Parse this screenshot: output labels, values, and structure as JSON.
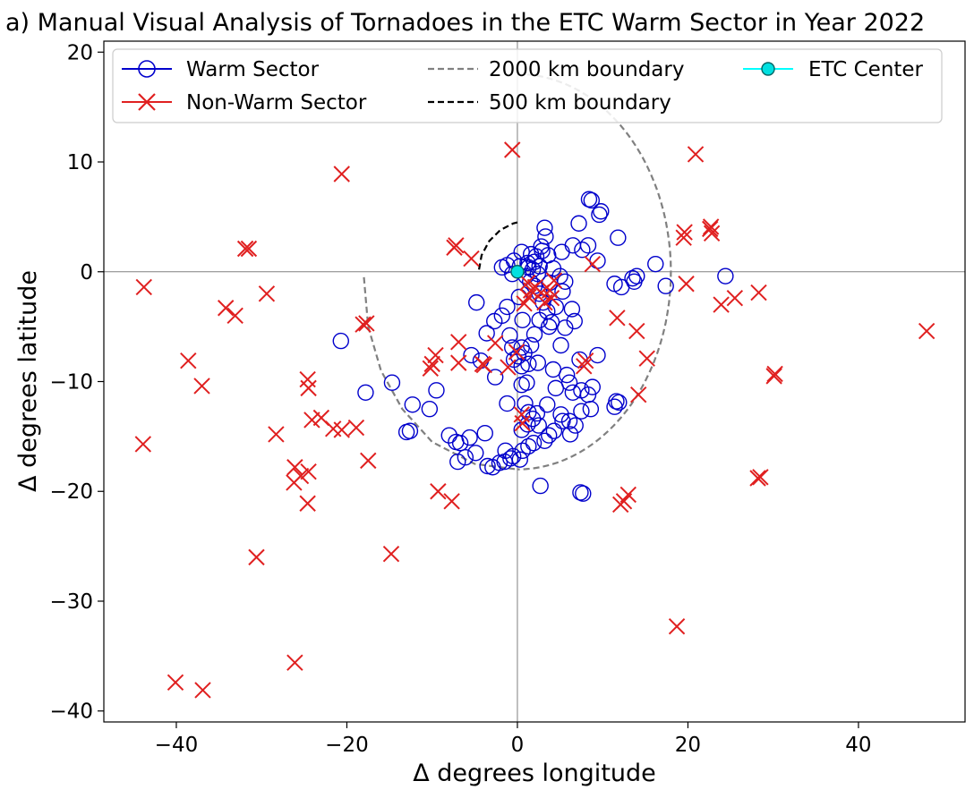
{
  "chart_data": {
    "type": "scatter",
    "title": "a)  Manual Visual Analysis of Tornadoes in the ETC Warm Sector in Year 2022",
    "xlabel": "Δ degrees longitude",
    "ylabel": "Δ degrees latitude",
    "xlim": [
      -48.5,
      52.5
    ],
    "ylim": [
      -41,
      21
    ],
    "xticks": [
      -40,
      -20,
      0,
      20,
      40
    ],
    "yticks": [
      -40,
      -30,
      -20,
      -10,
      0,
      10,
      20
    ],
    "xtick_labels": [
      "−40",
      "−20",
      "0",
      "20",
      "40"
    ],
    "ytick_labels": [
      "−40",
      "−30",
      "−20",
      "−10",
      "0",
      "10",
      "20"
    ],
    "legend_position": "top",
    "legend": [
      {
        "key": "warm",
        "label": "Warm Sector"
      },
      {
        "key": "nonwarm",
        "label": "Non-Warm Sector"
      },
      {
        "key": "b2000",
        "label": "2000 km boundary"
      },
      {
        "key": "b500",
        "label": "500 km boundary"
      },
      {
        "key": "center",
        "label": "ETC Center"
      }
    ],
    "colors": {
      "warm": "#0000cc",
      "nonwarm": "#e02020",
      "b2000": "#808080",
      "b500": "#000000",
      "center_fill": "#00e0e0",
      "center_line": "#00ffff",
      "zero_lines": "#808080"
    },
    "boundaries": {
      "b2000": {
        "center": [
          0,
          0
        ],
        "radius_x": 18,
        "radius_y": 18,
        "arc_from_deg": 270,
        "arc_to_deg": 450,
        "extra_arc": [
          [
            -18,
            -0.5
          ],
          [
            -17.5,
            -5
          ],
          [
            -16,
            -9
          ],
          [
            -13.5,
            -12.5
          ],
          [
            -10,
            -15.5
          ],
          [
            -5,
            -17.5
          ],
          [
            0,
            -18
          ]
        ]
      },
      "b500": [
        [
          -4.5,
          0.2
        ],
        [
          -4.2,
          1.5
        ],
        [
          -3.3,
          2.8
        ],
        [
          -2,
          3.8
        ],
        [
          -0.5,
          4.4
        ],
        [
          0,
          4.5
        ]
      ]
    },
    "series": [
      {
        "name": "Warm Sector",
        "marker": "circle",
        "points": [
          [
            0.5,
            1.8
          ],
          [
            1.2,
            0.8
          ],
          [
            1.8,
            0.2
          ],
          [
            2.2,
            1.4
          ],
          [
            2.6,
            0.5
          ],
          [
            1.0,
            -0.4
          ],
          [
            1.5,
            -0.9
          ],
          [
            2.0,
            0.9
          ],
          [
            1.6,
            1.6
          ],
          [
            2.4,
            -0.2
          ],
          [
            1.3,
            0.4
          ],
          [
            2.9,
            1.9
          ],
          [
            3.2,
            4.0
          ],
          [
            3.3,
            3.2
          ],
          [
            2.8,
            2.3
          ],
          [
            3.6,
            1.5
          ],
          [
            4.2,
            0.3
          ],
          [
            3.8,
            -1.0
          ],
          [
            5.0,
            -0.4
          ],
          [
            5.6,
            -0.9
          ],
          [
            5.2,
            1.8
          ],
          [
            6.5,
            2.4
          ],
          [
            7.2,
            4.4
          ],
          [
            8.4,
            6.6
          ],
          [
            8.7,
            6.5
          ],
          [
            9.6,
            5.2
          ],
          [
            9.8,
            5.5
          ],
          [
            7.6,
            2.0
          ],
          [
            8.3,
            2.4
          ],
          [
            9.4,
            1.0
          ],
          [
            11.8,
            3.1
          ],
          [
            11.4,
            -1.1
          ],
          [
            12.2,
            -1.4
          ],
          [
            13.5,
            -0.6
          ],
          [
            14.0,
            -0.4
          ],
          [
            13.7,
            -0.9
          ],
          [
            16.2,
            0.7
          ],
          [
            17.4,
            -1.3
          ],
          [
            24.4,
            -0.4
          ],
          [
            -1.8,
            0.4
          ],
          [
            -1.2,
            0.6
          ],
          [
            -0.6,
            -0.2
          ],
          [
            0.3,
            0.5
          ],
          [
            -0.4,
            1.0
          ],
          [
            2.0,
            -1.3
          ],
          [
            2.6,
            -2.0
          ],
          [
            3.0,
            -2.8
          ],
          [
            3.5,
            -3.6
          ],
          [
            4.5,
            -3.2
          ],
          [
            5.3,
            -1.8
          ],
          [
            6.4,
            -3.4
          ],
          [
            6.7,
            -4.5
          ],
          [
            5.6,
            -5.1
          ],
          [
            4.0,
            -4.6
          ],
          [
            3.7,
            -5.0
          ],
          [
            2.6,
            -4.4
          ],
          [
            2.0,
            -5.7
          ],
          [
            1.6,
            -6.7
          ],
          [
            0.6,
            -4.4
          ],
          [
            0.2,
            -2.3
          ],
          [
            -1.2,
            -3.2
          ],
          [
            -1.8,
            -4.0
          ],
          [
            -2.7,
            -4.5
          ],
          [
            -3.6,
            -5.6
          ],
          [
            -4.8,
            -2.8
          ],
          [
            -0.9,
            -5.8
          ],
          [
            0.5,
            -6.9
          ],
          [
            0.8,
            -7.4
          ],
          [
            0.1,
            -7.7
          ],
          [
            -0.6,
            -6.9
          ],
          [
            -0.4,
            -8.0
          ],
          [
            0.5,
            -8.6
          ],
          [
            1.3,
            -8.4
          ],
          [
            2.4,
            -8.3
          ],
          [
            4.2,
            -8.9
          ],
          [
            5.8,
            -9.4
          ],
          [
            6.1,
            -10.1
          ],
          [
            6.5,
            -11.0
          ],
          [
            7.5,
            -10.8
          ],
          [
            8.3,
            -11.2
          ],
          [
            8.8,
            -10.5
          ],
          [
            9.4,
            -7.6
          ],
          [
            7.3,
            -8.0
          ],
          [
            5.1,
            -6.7
          ],
          [
            4.5,
            -10.6
          ],
          [
            3.5,
            -12.1
          ],
          [
            2.3,
            -12.9
          ],
          [
            1.3,
            -12.8
          ],
          [
            0.9,
            -12.0
          ],
          [
            0.5,
            -10.3
          ],
          [
            1.1,
            -10.1
          ],
          [
            -1.2,
            -12.0
          ],
          [
            -2.6,
            -9.6
          ],
          [
            -4.3,
            -8.1
          ],
          [
            -5.4,
            -7.6
          ],
          [
            -9.5,
            -10.8
          ],
          [
            -10.3,
            -12.5
          ],
          [
            -12.3,
            -12.1
          ],
          [
            -14.7,
            -10.1
          ],
          [
            -17.8,
            -11.0
          ],
          [
            -20.7,
            -6.3
          ],
          [
            0.5,
            -14.4
          ],
          [
            1.2,
            -13.9
          ],
          [
            1.8,
            -13.4
          ],
          [
            2.5,
            -14.0
          ],
          [
            3.2,
            -15.4
          ],
          [
            3.7,
            -14.9
          ],
          [
            4.3,
            -14.5
          ],
          [
            5.1,
            -13.0
          ],
          [
            5.3,
            -13.6
          ],
          [
            6.1,
            -13.6
          ],
          [
            6.8,
            -14.0
          ],
          [
            6.2,
            -14.8
          ],
          [
            7.5,
            -12.7
          ],
          [
            8.6,
            -12.5
          ],
          [
            11.6,
            -11.8
          ],
          [
            11.9,
            -11.9
          ],
          [
            11.4,
            -12.3
          ],
          [
            1.3,
            -15.9
          ],
          [
            1.9,
            -15.6
          ],
          [
            0.6,
            -16.3
          ],
          [
            -0.5,
            -16.8
          ],
          [
            -0.8,
            -17.0
          ],
          [
            -1.5,
            -17.3
          ],
          [
            -2.1,
            -17.4
          ],
          [
            -2.9,
            -17.8
          ],
          [
            -3.5,
            -17.7
          ],
          [
            -3.8,
            -14.7
          ],
          [
            -4.9,
            -16.5
          ],
          [
            -5.6,
            -15.1
          ],
          [
            -6.7,
            -15.6
          ],
          [
            -7.2,
            -15.5
          ],
          [
            -6.1,
            -16.9
          ],
          [
            -7.0,
            -17.3
          ],
          [
            -8.0,
            -14.9
          ],
          [
            -12.6,
            -14.5
          ],
          [
            -13.0,
            -14.6
          ],
          [
            2.7,
            -19.5
          ],
          [
            7.4,
            -20.1
          ],
          [
            7.7,
            -20.2
          ],
          [
            -1.4,
            -16.3
          ],
          [
            0.3,
            -17.1
          ]
        ]
      },
      {
        "name": "Non-Warm Sector",
        "marker": "x",
        "points": [
          [
            -43.8,
            -1.4
          ],
          [
            -43.9,
            -15.7
          ],
          [
            -38.6,
            -8.1
          ],
          [
            -37.0,
            -10.4
          ],
          [
            -34.2,
            -3.3
          ],
          [
            -33.1,
            -4.0
          ],
          [
            -31.9,
            2.1
          ],
          [
            -31.5,
            2.1
          ],
          [
            -29.4,
            -2.0
          ],
          [
            -28.3,
            -14.8
          ],
          [
            -26.1,
            -17.8
          ],
          [
            -26.2,
            -19.2
          ],
          [
            -25.4,
            -18.6
          ],
          [
            -24.5,
            -18.2
          ],
          [
            -24.6,
            -9.8
          ],
          [
            -24.5,
            -10.6
          ],
          [
            -24.1,
            -13.5
          ],
          [
            -24.6,
            -21.1
          ],
          [
            -23.0,
            -13.3
          ],
          [
            -21.6,
            -14.3
          ],
          [
            -20.6,
            -14.4
          ],
          [
            -20.6,
            8.9
          ],
          [
            -18.9,
            -14.2
          ],
          [
            -18.1,
            -4.8
          ],
          [
            -17.7,
            -4.7
          ],
          [
            -17.5,
            -17.2
          ],
          [
            -14.8,
            -25.7
          ],
          [
            -30.6,
            -26.0
          ],
          [
            -26.1,
            -35.6
          ],
          [
            -40.1,
            -37.4
          ],
          [
            -36.9,
            -38.1
          ],
          [
            -10.2,
            -8.8
          ],
          [
            -10.0,
            -8.4
          ],
          [
            -9.6,
            -7.6
          ],
          [
            -9.3,
            -20.0
          ],
          [
            -7.7,
            -20.9
          ],
          [
            -7.4,
            2.2
          ],
          [
            -7.2,
            2.4
          ],
          [
            -6.9,
            -6.4
          ],
          [
            -6.9,
            -8.3
          ],
          [
            -5.4,
            1.2
          ],
          [
            -4.1,
            -8.4
          ],
          [
            -3.9,
            -8.5
          ],
          [
            -2.6,
            -6.5
          ],
          [
            -1.1,
            -8.7
          ],
          [
            -0.6,
            11.1
          ],
          [
            -0.1,
            -7.3
          ],
          [
            0.5,
            -13.0
          ],
          [
            0.6,
            -13.8
          ],
          [
            0.8,
            -2.9
          ],
          [
            1.3,
            -2.3
          ],
          [
            1.6,
            -1.7
          ],
          [
            2.1,
            -1.4
          ],
          [
            2.8,
            -1.9
          ],
          [
            3.2,
            -2.8
          ],
          [
            3.8,
            -1.7
          ],
          [
            4.0,
            -2.4
          ],
          [
            4.3,
            -0.8
          ],
          [
            1.2,
            -1.0
          ],
          [
            7.8,
            -8.6
          ],
          [
            8.0,
            -8.1
          ],
          [
            8.8,
            0.7
          ],
          [
            11.7,
            -4.2
          ],
          [
            12.1,
            -21.2
          ],
          [
            12.5,
            -20.9
          ],
          [
            13.0,
            -20.3
          ],
          [
            14.0,
            -5.4
          ],
          [
            14.2,
            -11.2
          ],
          [
            15.2,
            -7.9
          ],
          [
            18.7,
            -32.3
          ],
          [
            19.5,
            3.1
          ],
          [
            19.6,
            3.6
          ],
          [
            19.8,
            -1.1
          ],
          [
            20.9,
            10.7
          ],
          [
            22.6,
            3.9
          ],
          [
            22.7,
            4.1
          ],
          [
            22.8,
            3.5
          ],
          [
            23.9,
            -3.0
          ],
          [
            25.5,
            -2.4
          ],
          [
            28.3,
            -1.9
          ],
          [
            28.2,
            -18.8
          ],
          [
            28.5,
            -18.7
          ],
          [
            30.2,
            -9.3
          ],
          [
            30.1,
            -9.5
          ],
          [
            48.0,
            -5.4
          ]
        ]
      },
      {
        "name": "ETC Center",
        "marker": "filled-circle",
        "points": [
          [
            0.0,
            0.0
          ]
        ]
      }
    ]
  }
}
